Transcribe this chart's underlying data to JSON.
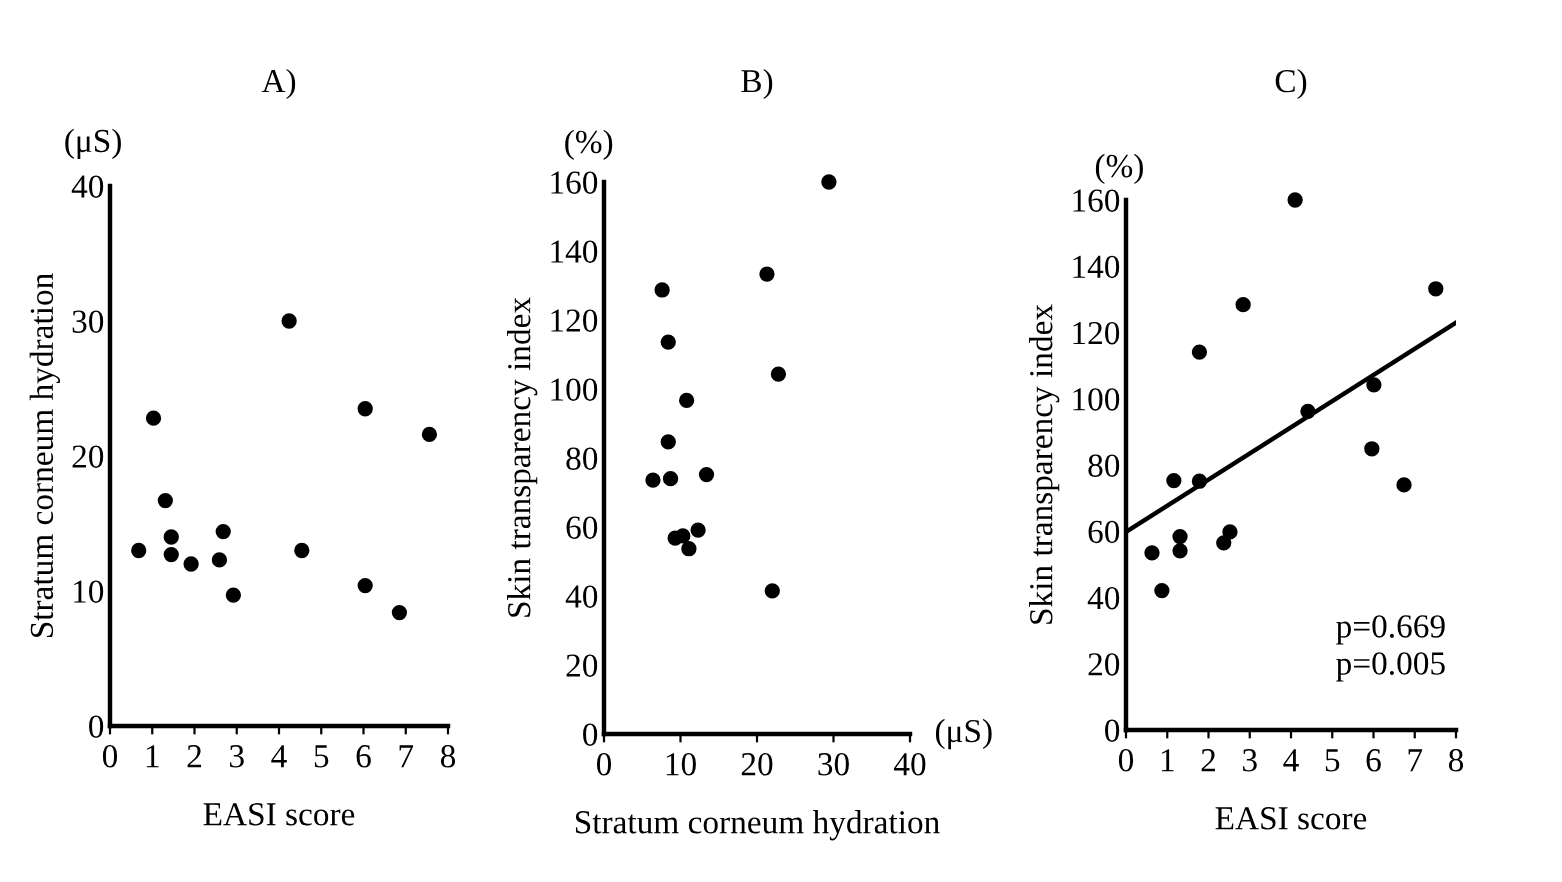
{
  "chart_data": [
    {
      "type": "scatter",
      "title": "A)",
      "xlabel": "EASI score",
      "ylabel": "Stratum corneum hydration",
      "annotations": [
        "(μS)"
      ],
      "xlim": [
        0,
        8
      ],
      "ylim": [
        0,
        40
      ],
      "xticks": [
        0,
        1,
        2,
        3,
        4,
        5,
        6,
        7,
        8
      ],
      "yticks": [
        0,
        10,
        20,
        30,
        40
      ],
      "marker": "circle",
      "grid": false,
      "legend": false,
      "series": [
        {
          "color": "#000000",
          "x": [
            0.68,
            1.03,
            1.31,
            1.45,
            1.45,
            1.92,
            2.59,
            2.68,
            2.92,
            4.24,
            4.54,
            6.04,
            6.04,
            6.85,
            7.56
          ],
          "values": [
            13.0,
            22.8,
            16.7,
            14.0,
            12.7,
            12.0,
            12.3,
            14.4,
            9.7,
            30.0,
            13.0,
            23.5,
            10.4,
            8.4,
            21.6
          ]
        }
      ]
    },
    {
      "type": "scatter",
      "title": "B)",
      "xlabel": "Stratum corneum hydration",
      "ylabel": "Skin transparency index",
      "annotations": [
        "(%)",
        "(μS)"
      ],
      "xlim": [
        0,
        40
      ],
      "ylim": [
        0,
        160
      ],
      "xticks": [
        0,
        10,
        20,
        30,
        40
      ],
      "yticks": [
        0,
        20,
        40,
        60,
        80,
        100,
        120,
        140,
        160
      ],
      "marker": "circle",
      "grid": false,
      "legend": false,
      "series": [
        {
          "color": "#000000",
          "x": [
            29.4,
            21.3,
            7.6,
            8.4,
            22.8,
            10.8,
            8.4,
            6.4,
            8.7,
            13.4,
            9.3,
            10.3,
            12.3,
            11.1,
            22.0
          ],
          "values": [
            160,
            133.3,
            128.7,
            113.6,
            104.3,
            96.7,
            84.7,
            73.6,
            74.0,
            75.2,
            56.8,
            57.4,
            59.1,
            53.7,
            41.5
          ]
        }
      ]
    },
    {
      "type": "scatter",
      "title": "C)",
      "xlabel": "EASI score",
      "ylabel": "Skin transparency index",
      "annotations": [
        "(%)",
        "p=0.669",
        "p=0.005"
      ],
      "xlim": [
        0,
        8
      ],
      "ylim": [
        0,
        160
      ],
      "xticks": [
        0,
        1,
        2,
        3,
        4,
        5,
        6,
        7,
        8
      ],
      "yticks": [
        0,
        20,
        40,
        60,
        80,
        100,
        120,
        140,
        160
      ],
      "marker": "circle",
      "grid": false,
      "legend": false,
      "series": [
        {
          "color": "#000000",
          "x": [
            4.1,
            7.51,
            2.84,
            1.78,
            6.01,
            4.41,
            5.96,
            1.16,
            1.78,
            6.74,
            0.63,
            0.87,
            1.31,
            1.31,
            2.37,
            2.52
          ],
          "values": [
            160,
            133.2,
            128.4,
            114.1,
            104.2,
            96.2,
            84.9,
            75.3,
            75.1,
            74.0,
            53.5,
            42.1,
            58.4,
            54.1,
            56.5,
            59.8
          ]
        },
        {
          "type": "line",
          "color": "#000000",
          "marker": "none",
          "x": [
            0,
            8
          ],
          "values": [
            59.8,
            123
          ]
        }
      ]
    }
  ]
}
